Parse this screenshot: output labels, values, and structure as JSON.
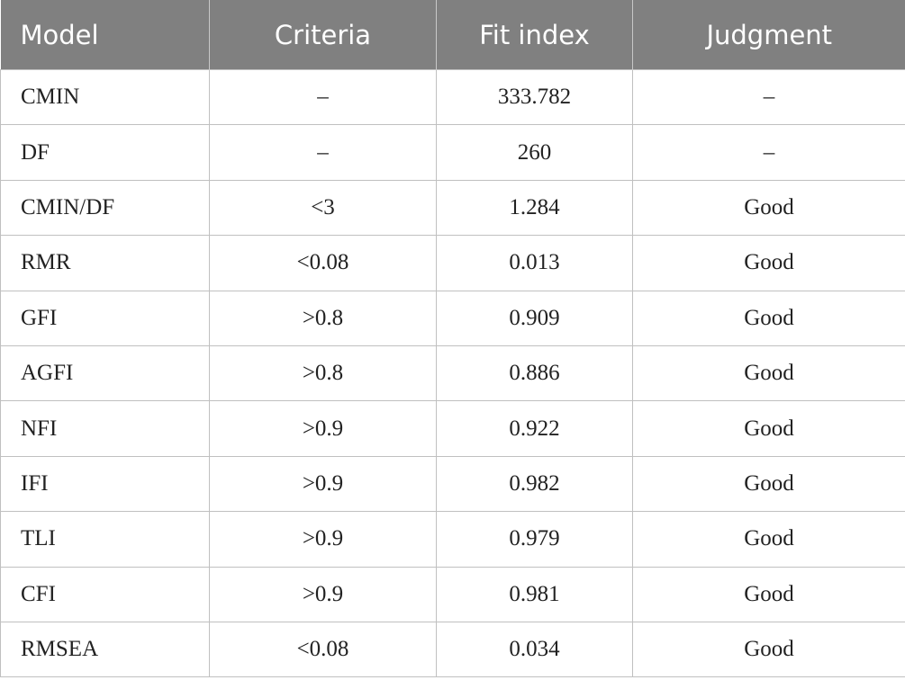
{
  "table": {
    "header": [
      "Model",
      "Criteria",
      "Fit index",
      "Judgment"
    ],
    "rows": [
      [
        "CMIN",
        "–",
        "333.782",
        "–"
      ],
      [
        "DF",
        "–",
        "260",
        "–"
      ],
      [
        "CMIN/DF",
        "<3",
        "1.284",
        "Good"
      ],
      [
        "RMR",
        "<0.08",
        "0.013",
        "Good"
      ],
      [
        "GFI",
        ">0.8",
        "0.909",
        "Good"
      ],
      [
        "AGFI",
        ">0.8",
        "0.886",
        "Good"
      ],
      [
        "NFI",
        ">0.9",
        "0.922",
        "Good"
      ],
      [
        "IFI",
        ">0.9",
        "0.982",
        "Good"
      ],
      [
        "TLI",
        ">0.9",
        "0.979",
        "Good"
      ],
      [
        "CFI",
        ">0.9",
        "0.981",
        "Good"
      ],
      [
        "RMSEA",
        "<0.08",
        "0.034",
        "Good"
      ]
    ]
  }
}
